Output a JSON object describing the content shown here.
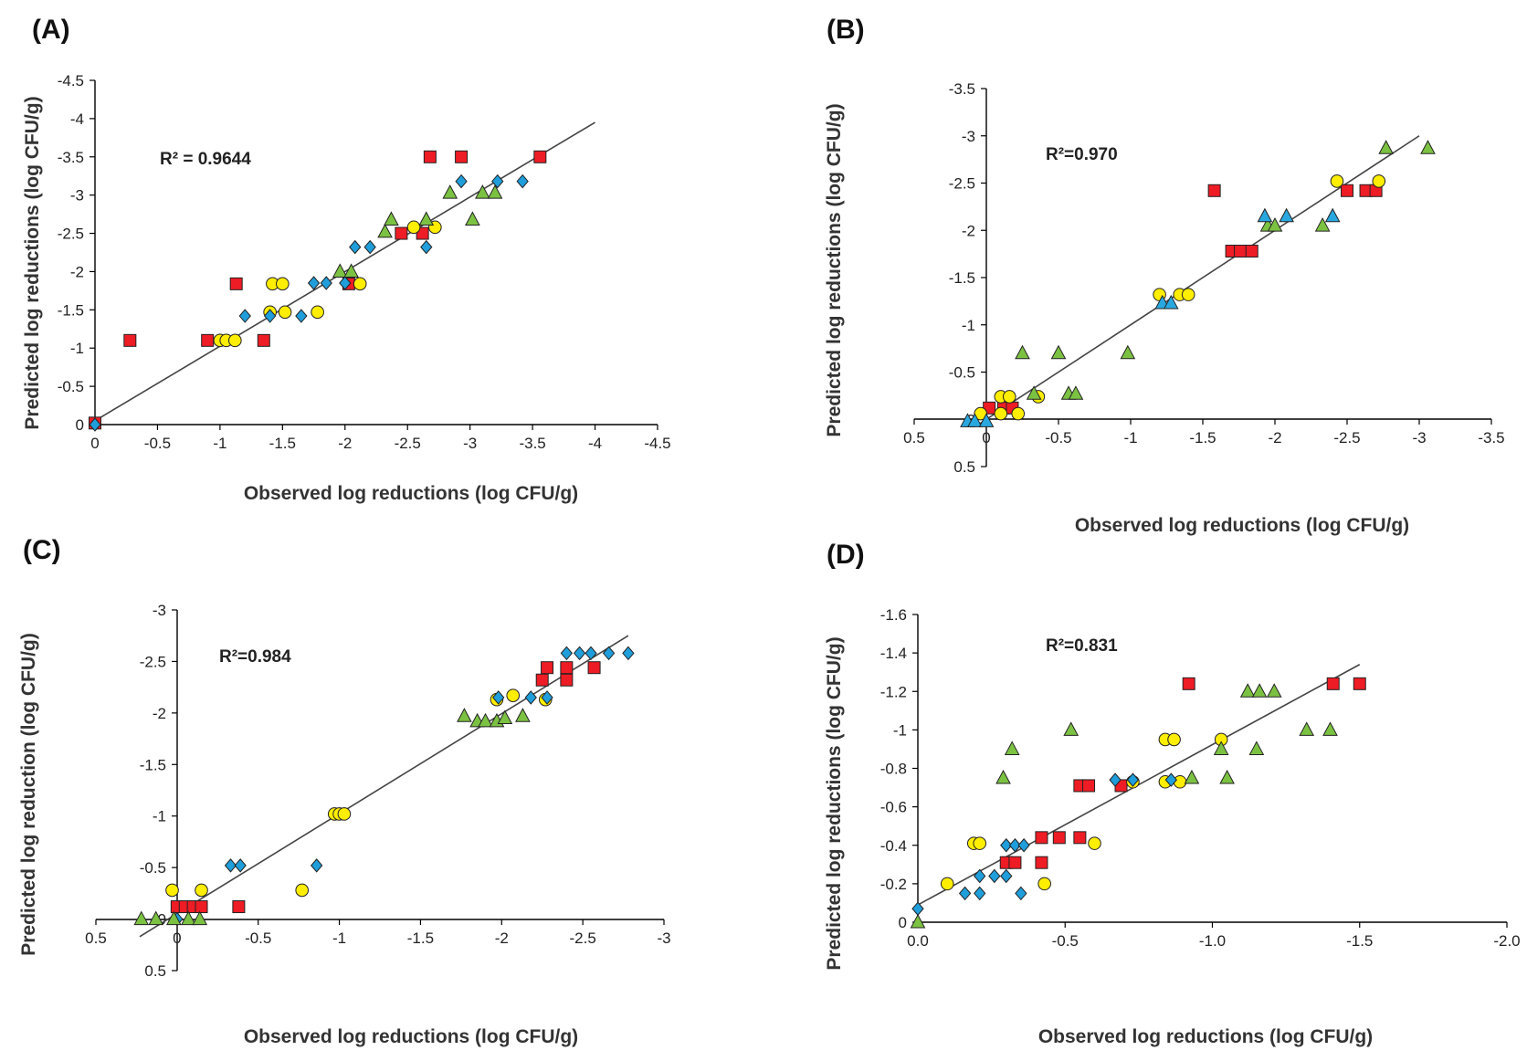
{
  "colors": {
    "square": "#ee1c24",
    "circle": "#ffee00",
    "diamond": "#1f9edb",
    "triangle_green": "#7cc242",
    "triangle_blue": "#29a8e0",
    "stroke": "#222222"
  },
  "chart_data": [
    {
      "type": "scatter",
      "panel_label": "(A)",
      "r2_text": "R² = 0.9644",
      "xlabel": "Observed log reductions (log CFU/g)",
      "ylabel": "Predicted log reductions (log CFU/g)",
      "xlim": [
        0,
        -4.5
      ],
      "ylim": [
        0,
        -4.5
      ],
      "x_ticks": [
        "0",
        "-0.5",
        "-1",
        "-1.5",
        "-2",
        "-2.5",
        "-3",
        "-3.5",
        "-4",
        "-4.5"
      ],
      "y_ticks": [
        "0",
        "-0.5",
        "-1",
        "-1.5",
        "-2",
        "-2.5",
        "-3",
        "-3.5",
        "-4",
        "-4.5"
      ],
      "fit": {
        "x": [
          0,
          -4
        ],
        "y": [
          -0.05,
          -3.95
        ]
      },
      "series": [
        {
          "name": "square",
          "marker": "square",
          "color": "#ee1c24",
          "points": [
            [
              0,
              -0.02
            ],
            [
              -0.28,
              -1.1
            ],
            [
              -0.9,
              -1.1
            ],
            [
              -1.13,
              -1.84
            ],
            [
              -1.35,
              -1.1
            ],
            [
              -2.03,
              -1.84
            ],
            [
              -2.45,
              -2.5
            ],
            [
              -2.62,
              -2.5
            ],
            [
              -2.68,
              -3.5
            ],
            [
              -2.93,
              -3.5
            ],
            [
              -3.56,
              -3.5
            ]
          ]
        },
        {
          "name": "circle",
          "marker": "circle",
          "color": "#ffee00",
          "points": [
            [
              -1.0,
              -1.1
            ],
            [
              -1.05,
              -1.1
            ],
            [
              -1.12,
              -1.1
            ],
            [
              -1.4,
              -1.47
            ],
            [
              -1.42,
              -1.84
            ],
            [
              -1.5,
              -1.84
            ],
            [
              -1.52,
              -1.47
            ],
            [
              -1.78,
              -1.47
            ],
            [
              -2.12,
              -1.84
            ],
            [
              -2.55,
              -2.58
            ],
            [
              -2.72,
              -2.58
            ]
          ]
        },
        {
          "name": "diamond",
          "marker": "diamond",
          "color": "#1f9edb",
          "points": [
            [
              0,
              0
            ],
            [
              -1.2,
              -1.42
            ],
            [
              -1.4,
              -1.42
            ],
            [
              -1.65,
              -1.42
            ],
            [
              -1.75,
              -1.85
            ],
            [
              -1.85,
              -1.85
            ],
            [
              -2.0,
              -1.85
            ],
            [
              -2.08,
              -2.32
            ],
            [
              -2.2,
              -2.32
            ],
            [
              -2.65,
              -2.32
            ],
            [
              -2.93,
              -3.18
            ],
            [
              -3.22,
              -3.18
            ],
            [
              -3.42,
              -3.18
            ]
          ]
        },
        {
          "name": "triangle",
          "marker": "triangle",
          "color": "#7cc242",
          "points": [
            [
              -1.96,
              -2.0
            ],
            [
              -2.05,
              -2.0
            ],
            [
              -2.32,
              -2.52
            ],
            [
              -2.37,
              -2.68
            ],
            [
              -2.65,
              -2.68
            ],
            [
              -2.84,
              -3.03
            ],
            [
              -3.02,
              -2.68
            ],
            [
              -3.1,
              -3.03
            ],
            [
              -3.2,
              -3.03
            ]
          ]
        }
      ]
    },
    {
      "type": "scatter",
      "panel_label": "(B)",
      "r2_text": "R²=0.970",
      "xlabel": "Observed log reductions (log CFU/g)",
      "ylabel": "Predicted log reductions (log CFU/g)",
      "xlim": [
        0.5,
        -3.5
      ],
      "ylim": [
        0.5,
        -3.5
      ],
      "x_ticks": [
        "0.5",
        "0",
        "-0.5",
        "-1",
        "-1.5",
        "-2",
        "-2.5",
        "-3",
        "-3.5"
      ],
      "y_ticks": [
        "0.5",
        "0",
        "-0.5",
        "-1",
        "-1.5",
        "-2",
        "-2.5",
        "-3",
        "-3.5"
      ],
      "fit": {
        "x": [
          0.05,
          -3.0
        ],
        "y": [
          0.05,
          -3.0
        ]
      },
      "series": [
        {
          "name": "square",
          "marker": "square",
          "color": "#ee1c24",
          "points": [
            [
              -0.02,
              -0.12
            ],
            [
              -0.12,
              -0.12
            ],
            [
              -0.18,
              -0.12
            ],
            [
              -1.58,
              -2.42
            ],
            [
              -1.7,
              -1.78
            ],
            [
              -1.76,
              -1.78
            ],
            [
              -1.84,
              -1.78
            ],
            [
              -2.5,
              -2.42
            ],
            [
              -2.63,
              -2.42
            ],
            [
              -2.7,
              -2.42
            ]
          ]
        },
        {
          "name": "circle",
          "marker": "circle",
          "color": "#ffee00",
          "points": [
            [
              0.04,
              -0.06
            ],
            [
              -0.1,
              -0.06
            ],
            [
              -0.1,
              -0.24
            ],
            [
              -0.16,
              -0.24
            ],
            [
              -0.22,
              -0.06
            ],
            [
              -0.36,
              -0.24
            ],
            [
              -1.2,
              -1.32
            ],
            [
              -1.34,
              -1.32
            ],
            [
              -1.4,
              -1.32
            ],
            [
              -2.43,
              -2.52
            ],
            [
              -2.72,
              -2.52
            ]
          ]
        },
        {
          "name": "triangle_green",
          "marker": "triangle",
          "color": "#7cc242",
          "points": [
            [
              -0.25,
              -0.7
            ],
            [
              -0.33,
              -0.27
            ],
            [
              -0.5,
              -0.7
            ],
            [
              -0.57,
              -0.27
            ],
            [
              -0.62,
              -0.27
            ],
            [
              -0.98,
              -0.7
            ],
            [
              -1.95,
              -2.05
            ],
            [
              -2.0,
              -2.05
            ],
            [
              -2.33,
              -2.05
            ],
            [
              -2.77,
              -2.87
            ],
            [
              -3.06,
              -2.87
            ]
          ]
        },
        {
          "name": "triangle_blue",
          "marker": "triangle",
          "color": "#29a8e0",
          "points": [
            [
              0.13,
              0.02
            ],
            [
              0.08,
              0.02
            ],
            [
              0,
              0.02
            ],
            [
              -1.22,
              -1.23
            ],
            [
              -1.28,
              -1.23
            ],
            [
              -1.93,
              -2.15
            ],
            [
              -2.08,
              -2.15
            ],
            [
              -2.4,
              -2.15
            ]
          ]
        }
      ]
    },
    {
      "type": "scatter",
      "panel_label": "(C)",
      "r2_text": "R²=0.984",
      "xlabel": "Observed log reductions (log CFU/g)",
      "ylabel": "Predicted log reduction (log CFU/g)",
      "xlim": [
        0.5,
        -3
      ],
      "ylim": [
        0.5,
        -3
      ],
      "x_ticks": [
        "0.5",
        "0",
        "-0.5",
        "-1",
        "-1.5",
        "-2",
        "-2.5",
        "-3"
      ],
      "y_ticks": [
        "0.5",
        "0",
        "-0.5",
        "-1",
        "-1.5",
        "-2",
        "-2.5",
        "-3"
      ],
      "fit": {
        "x": [
          0.23,
          -2.78
        ],
        "y": [
          0.17,
          -2.75
        ]
      },
      "series": [
        {
          "name": "square",
          "marker": "square",
          "color": "#ee1c24",
          "points": [
            [
              0,
              -0.12
            ],
            [
              -0.05,
              -0.12
            ],
            [
              -0.1,
              -0.12
            ],
            [
              -0.15,
              -0.12
            ],
            [
              -0.38,
              -0.12
            ],
            [
              -2.25,
              -2.32
            ],
            [
              -2.28,
              -2.44
            ],
            [
              -2.4,
              -2.32
            ],
            [
              -2.4,
              -2.44
            ],
            [
              -2.57,
              -2.44
            ]
          ]
        },
        {
          "name": "circle",
          "marker": "circle",
          "color": "#ffee00",
          "points": [
            [
              0.03,
              -0.28
            ],
            [
              -0.15,
              -0.28
            ],
            [
              -0.77,
              -0.28
            ],
            [
              -0.97,
              -1.02
            ],
            [
              -1.0,
              -1.02
            ],
            [
              -1.03,
              -1.02
            ],
            [
              -1.97,
              -2.13
            ],
            [
              -2.07,
              -2.17
            ],
            [
              -2.27,
              -2.13
            ]
          ]
        },
        {
          "name": "diamond",
          "marker": "diamond",
          "color": "#1f9edb",
          "points": [
            [
              0,
              0
            ],
            [
              -0.33,
              -0.52
            ],
            [
              -0.39,
              -0.52
            ],
            [
              -0.86,
              -0.52
            ],
            [
              -1.98,
              -2.15
            ],
            [
              -2.18,
              -2.15
            ],
            [
              -2.28,
              -2.15
            ],
            [
              -2.4,
              -2.58
            ],
            [
              -2.48,
              -2.58
            ],
            [
              -2.55,
              -2.58
            ],
            [
              -2.66,
              -2.58
            ],
            [
              -2.78,
              -2.58
            ]
          ]
        },
        {
          "name": "triangle",
          "marker": "triangle",
          "color": "#7cc242",
          "points": [
            [
              0.22,
              0
            ],
            [
              0.13,
              0
            ],
            [
              0.02,
              0
            ],
            [
              -0.07,
              0
            ],
            [
              -0.14,
              0
            ],
            [
              -1.77,
              -1.97
            ],
            [
              -1.85,
              -1.92
            ],
            [
              -1.9,
              -1.92
            ],
            [
              -1.97,
              -1.92
            ],
            [
              -2.02,
              -1.95
            ],
            [
              -2.13,
              -1.97
            ]
          ]
        }
      ]
    },
    {
      "type": "scatter",
      "panel_label": "(D)",
      "r2_text": "R²=0.831",
      "xlabel": "Observed log reductions (log CFU/g)",
      "ylabel": "Predicted log reductions (log CFU/g)",
      "xlim": [
        0,
        -2.0
      ],
      "ylim": [
        0,
        -1.6
      ],
      "x_ticks": [
        "0.0",
        "-0.5",
        "-1.0",
        "-1.5",
        "-2.0"
      ],
      "y_ticks": [
        "0",
        "-0.2",
        "-0.4",
        "-0.6",
        "-0.8",
        "-1",
        "-1.2",
        "-1.4",
        "-1.6"
      ],
      "fit": {
        "x": [
          0,
          -1.5
        ],
        "y": [
          -0.09,
          -1.34
        ]
      },
      "series": [
        {
          "name": "square",
          "marker": "square",
          "color": "#ee1c24",
          "points": [
            [
              -0.3,
              -0.31
            ],
            [
              -0.33,
              -0.31
            ],
            [
              -0.42,
              -0.31
            ],
            [
              -0.42,
              -0.44
            ],
            [
              -0.48,
              -0.44
            ],
            [
              -0.55,
              -0.44
            ],
            [
              -0.55,
              -0.71
            ],
            [
              -0.58,
              -0.71
            ],
            [
              -0.69,
              -0.71
            ],
            [
              -0.92,
              -1.24
            ],
            [
              -1.41,
              -1.24
            ],
            [
              -1.5,
              -1.24
            ]
          ]
        },
        {
          "name": "circle",
          "marker": "circle",
          "color": "#ffee00",
          "points": [
            [
              -0.1,
              -0.2
            ],
            [
              -0.19,
              -0.41
            ],
            [
              -0.21,
              -0.41
            ],
            [
              -0.43,
              -0.2
            ],
            [
              -0.6,
              -0.41
            ],
            [
              -0.73,
              -0.73
            ],
            [
              -0.84,
              -0.73
            ],
            [
              -0.84,
              -0.95
            ],
            [
              -0.87,
              -0.95
            ],
            [
              -0.89,
              -0.73
            ],
            [
              -1.03,
              -0.95
            ]
          ]
        },
        {
          "name": "diamond",
          "marker": "diamond",
          "color": "#1f9edb",
          "points": [
            [
              0,
              -0.07
            ],
            [
              -0.16,
              -0.15
            ],
            [
              -0.21,
              -0.15
            ],
            [
              -0.21,
              -0.24
            ],
            [
              -0.26,
              -0.24
            ],
            [
              -0.3,
              -0.24
            ],
            [
              -0.3,
              -0.4
            ],
            [
              -0.33,
              -0.4
            ],
            [
              -0.36,
              -0.4
            ],
            [
              -0.35,
              -0.15
            ],
            [
              -0.67,
              -0.74
            ],
            [
              -0.73,
              -0.74
            ],
            [
              -0.86,
              -0.74
            ]
          ]
        },
        {
          "name": "triangle",
          "marker": "triangle",
          "color": "#7cc242",
          "points": [
            [
              0,
              0
            ],
            [
              -0.29,
              -0.75
            ],
            [
              -0.32,
              -0.9
            ],
            [
              -0.52,
              -1.0
            ],
            [
              -0.93,
              -0.75
            ],
            [
              -1.03,
              -0.9
            ],
            [
              -1.05,
              -0.75
            ],
            [
              -1.12,
              -1.2
            ],
            [
              -1.15,
              -0.9
            ],
            [
              -1.16,
              -1.2
            ],
            [
              -1.21,
              -1.2
            ],
            [
              -1.32,
              -1.0
            ],
            [
              -1.4,
              -1.0
            ]
          ]
        }
      ]
    }
  ]
}
